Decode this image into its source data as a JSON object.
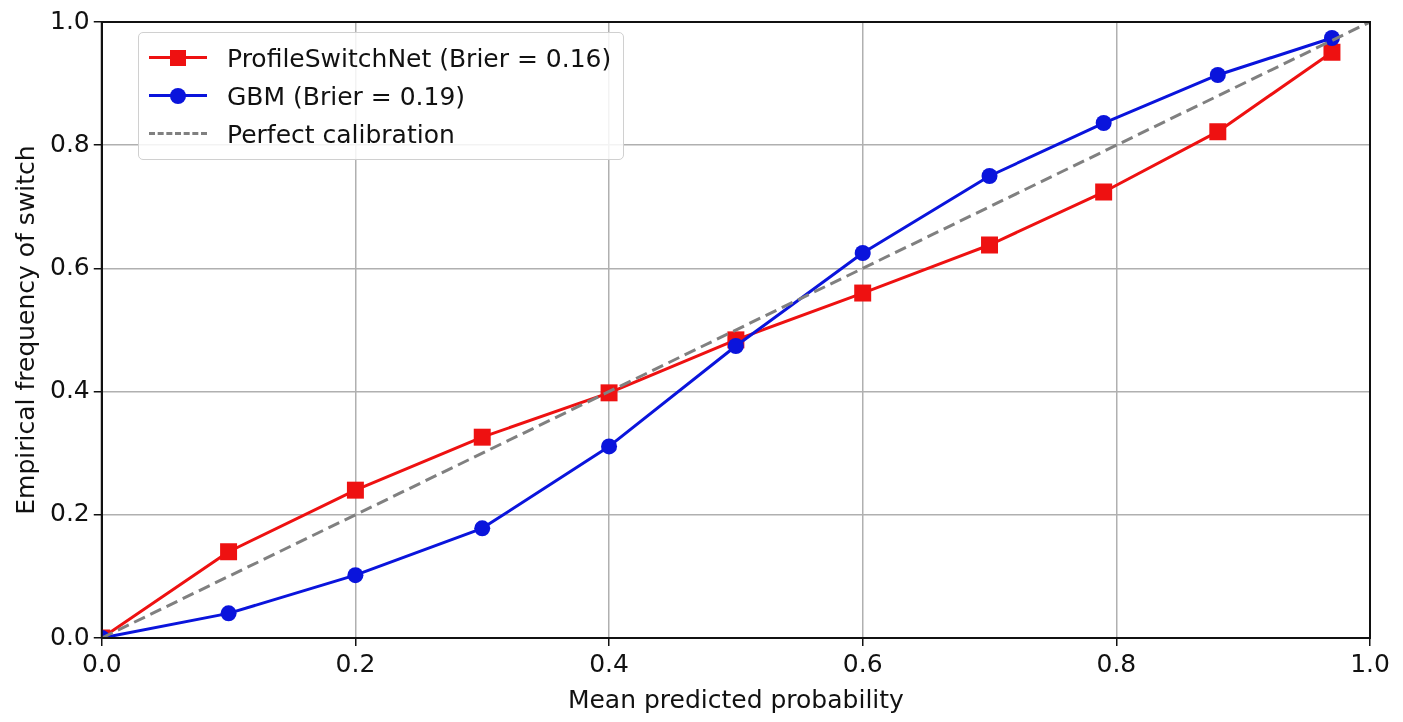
{
  "chart_data": {
    "type": "line",
    "xlabel": "Mean predicted probability",
    "ylabel": "Empirical frequency of switch",
    "xlim": [
      0,
      1
    ],
    "ylim": [
      0,
      1
    ],
    "xticks": [
      {
        "value": 0,
        "label": "0.0"
      },
      0.2,
      0.4,
      0.6,
      0.8,
      {
        "value": 1,
        "label": "1.0"
      }
    ],
    "yticks": [
      {
        "value": 0,
        "label": "0.0"
      },
      0.2,
      0.4,
      0.6,
      0.8,
      {
        "value": 1,
        "label": "1.0"
      }
    ],
    "grid": true,
    "legend": "top left",
    "series": [
      {
        "name": "ProfileSwitchNet (Brier = 0.16)",
        "color": "#ee1111",
        "marker": "square",
        "line_style": "solid",
        "x": [
          0,
          0.1,
          0.2,
          0.3,
          0.4,
          0.5,
          0.6,
          0.7,
          0.79,
          0.88,
          0.97
        ],
        "values": [
          0,
          0.14,
          0.24,
          0.326,
          0.398,
          0.484,
          0.56,
          0.638,
          0.724,
          0.822,
          0.951
        ]
      },
      {
        "name": "GBM (Brier = 0.19)",
        "color": "#0a14dc",
        "marker": "circle",
        "line_style": "solid",
        "x": [
          0,
          0.1,
          0.2,
          0.3,
          0.4,
          0.5,
          0.6,
          0.7,
          0.79,
          0.88,
          0.97
        ],
        "values": [
          0,
          0.04,
          0.102,
          0.178,
          0.311,
          0.474,
          0.625,
          0.75,
          0.836,
          0.914,
          0.974
        ]
      },
      {
        "name": "Perfect calibration",
        "color": "#808080",
        "marker": "none",
        "line_style": "dashed",
        "x": [
          0,
          1
        ],
        "values": [
          0,
          1
        ]
      }
    ]
  }
}
